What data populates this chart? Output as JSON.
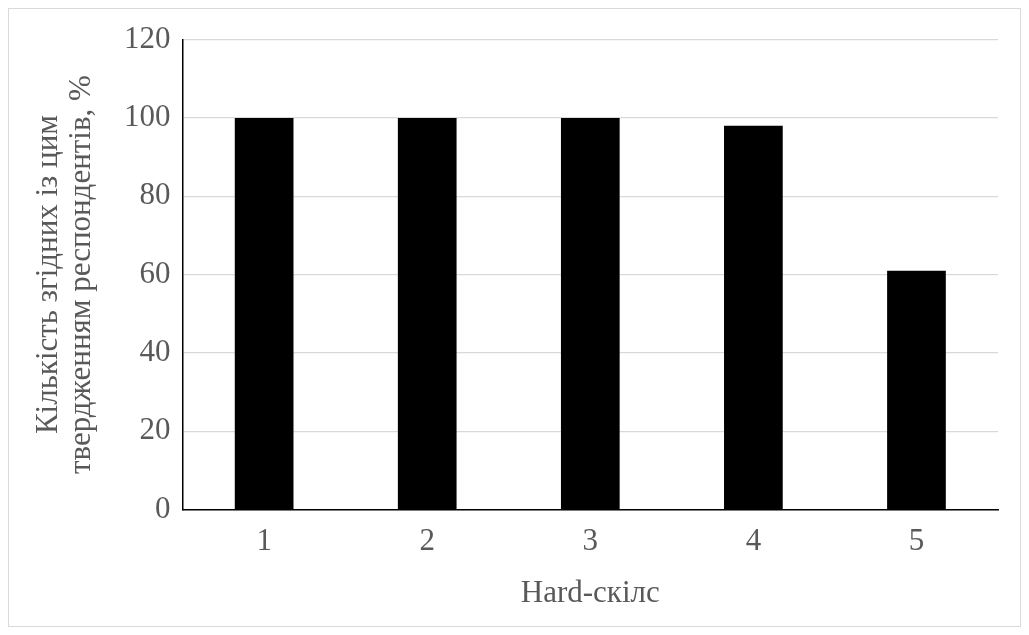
{
  "chart_data": {
    "type": "bar",
    "xlabel": "Hard-скілс",
    "ylabel": "Кількість згідних із цим твердженням респондентів, %",
    "categories": [
      "1",
      "2",
      "3",
      "4",
      "5"
    ],
    "values": [
      100,
      100,
      100,
      98,
      61
    ],
    "color": "#000000",
    "ylim": [
      0,
      120
    ],
    "yticks": [
      0,
      20,
      40,
      60,
      80,
      100,
      120
    ],
    "grid": "y",
    "legend": false
  }
}
